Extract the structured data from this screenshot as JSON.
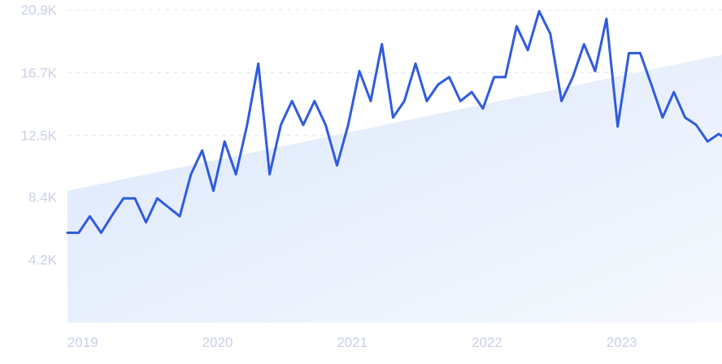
{
  "chart_data": {
    "type": "line",
    "title": "",
    "xlabel": "",
    "ylabel": "",
    "ylim": [
      0,
      20900
    ],
    "y_ticks": [
      {
        "value": 4200,
        "label": "4.2K"
      },
      {
        "value": 8400,
        "label": "8.4K"
      },
      {
        "value": 12500,
        "label": "12.5K"
      },
      {
        "value": 16700,
        "label": "16.7K"
      },
      {
        "value": 20900,
        "label": "20.9K"
      }
    ],
    "x_ticks": [
      {
        "value": 2019.0,
        "label": "2019"
      },
      {
        "value": 2020.0,
        "label": "2020"
      },
      {
        "value": 2021.0,
        "label": "2021"
      },
      {
        "value": 2022.0,
        "label": "2022"
      },
      {
        "value": 2023.0,
        "label": "2023"
      }
    ],
    "xlim": [
      2018.917,
      2023.75
    ],
    "grid": true,
    "trend": {
      "start": 8800,
      "end": 18000
    },
    "series": [
      {
        "line_color": "#2f5bde",
        "points": [
          [
            2018.917,
            6000
          ],
          [
            2019.0,
            6000
          ],
          [
            2019.083,
            7100
          ],
          [
            2019.167,
            6000
          ],
          [
            2019.25,
            7200
          ],
          [
            2019.333,
            8300
          ],
          [
            2019.417,
            8300
          ],
          [
            2019.5,
            6700
          ],
          [
            2019.583,
            8300
          ],
          [
            2019.667,
            7700
          ],
          [
            2019.75,
            7100
          ],
          [
            2019.833,
            9900
          ],
          [
            2019.917,
            11500
          ],
          [
            2020.0,
            8800
          ],
          [
            2020.083,
            12100
          ],
          [
            2020.167,
            9900
          ],
          [
            2020.25,
            13200
          ],
          [
            2020.333,
            17300
          ],
          [
            2020.417,
            9900
          ],
          [
            2020.5,
            13200
          ],
          [
            2020.583,
            14800
          ],
          [
            2020.667,
            13200
          ],
          [
            2020.75,
            14800
          ],
          [
            2020.833,
            13200
          ],
          [
            2020.917,
            10500
          ],
          [
            2021.0,
            13200
          ],
          [
            2021.083,
            16800
          ],
          [
            2021.167,
            14800
          ],
          [
            2021.25,
            18600
          ],
          [
            2021.333,
            13700
          ],
          [
            2021.417,
            14800
          ],
          [
            2021.5,
            17300
          ],
          [
            2021.583,
            14800
          ],
          [
            2021.667,
            15900
          ],
          [
            2021.75,
            16400
          ],
          [
            2021.833,
            14800
          ],
          [
            2021.917,
            15400
          ],
          [
            2022.0,
            14300
          ],
          [
            2022.083,
            16400
          ],
          [
            2022.167,
            16400
          ],
          [
            2022.25,
            19800
          ],
          [
            2022.333,
            18200
          ],
          [
            2022.417,
            20800
          ],
          [
            2022.5,
            19300
          ],
          [
            2022.583,
            14800
          ],
          [
            2022.667,
            16400
          ],
          [
            2022.75,
            18600
          ],
          [
            2022.833,
            16800
          ],
          [
            2022.917,
            20300
          ],
          [
            2023.0,
            13100
          ],
          [
            2023.083,
            18000
          ],
          [
            2023.167,
            18000
          ],
          [
            2023.25,
            15900
          ],
          [
            2023.333,
            13700
          ],
          [
            2023.417,
            15400
          ],
          [
            2023.5,
            13700
          ],
          [
            2023.583,
            13200
          ],
          [
            2023.667,
            12100
          ],
          [
            2023.75,
            12600
          ],
          [
            2023.833,
            12100
          ]
        ]
      }
    ]
  }
}
